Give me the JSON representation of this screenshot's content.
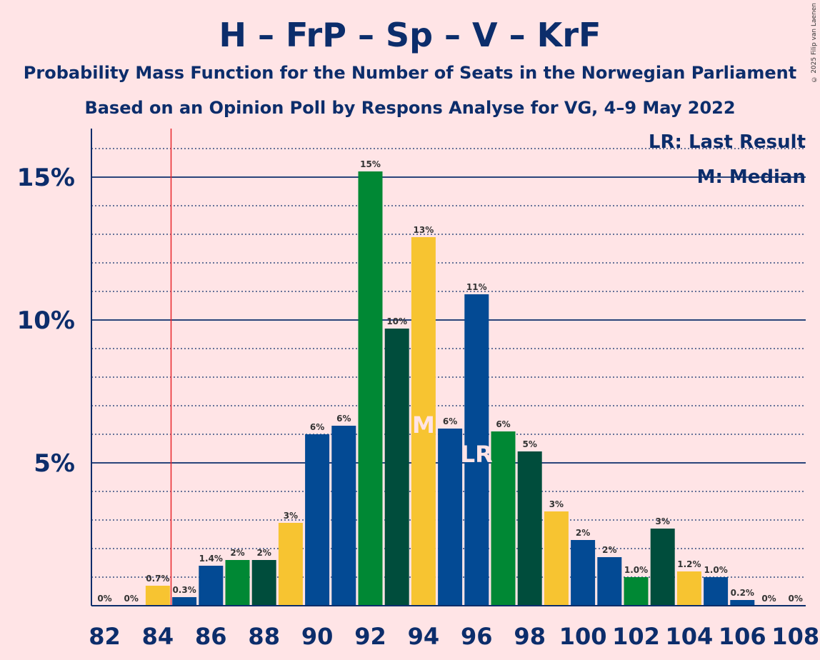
{
  "title": "H – FrP – Sp – V – KrF",
  "subtitle": "Probability Mass Function for the Number of Seats in the Norwegian Parliament",
  "subtitle2": "Based on an Opinion Poll by Respons Analyse for VG, 4–9 May 2022",
  "copyright": "© 2025 Filip van Laenen",
  "legend": {
    "last_result": "LR: Last Result",
    "median": "M: Median"
  },
  "colors": {
    "background": "#FFE4E6",
    "text": "#0C2D6B",
    "last_result_line": "#E8262B",
    "party_colors": [
      "#E8262B",
      "#F7C431",
      "#034A94",
      "#008834",
      "#004D3C"
    ]
  },
  "chart_data": {
    "type": "bar",
    "x": [
      82,
      83,
      84,
      85,
      86,
      87,
      88,
      89,
      90,
      91,
      92,
      93,
      94,
      95,
      96,
      97,
      98,
      99,
      100,
      101,
      102,
      103,
      104,
      105,
      106,
      107,
      108
    ],
    "values": [
      0,
      0,
      0.7,
      0.3,
      1.4,
      1.6,
      1.6,
      2.9,
      6.0,
      6.3,
      15.2,
      9.7,
      12.9,
      6.2,
      10.9,
      6.1,
      5.4,
      3.3,
      2.3,
      1.7,
      1.0,
      2.7,
      1.2,
      1.0,
      0.2,
      0,
      0
    ],
    "labels": [
      "0%",
      "0%",
      "0.7%",
      "0.3%",
      "1.4%",
      "2%",
      "2%",
      "3%",
      "6%",
      "6%",
      "15%",
      "10%",
      "13%",
      "6%",
      "11%",
      "6%",
      "5%",
      "3%",
      "2%",
      "2%",
      "1.0%",
      "3%",
      "1.2%",
      "1.0%",
      "0.2%",
      "0%",
      "0%"
    ],
    "bar_colors": [
      "#034A94",
      "#034A94",
      "#F7C431",
      "#034A94",
      "#034A94",
      "#008834",
      "#004D3C",
      "#F7C431",
      "#034A94",
      "#034A94",
      "#008834",
      "#004D3C",
      "#F7C431",
      "#034A94",
      "#034A94",
      "#008834",
      "#004D3C",
      "#F7C431",
      "#034A94",
      "#034A94",
      "#008834",
      "#004D3C",
      "#F7C431",
      "#034A94",
      "#034A94",
      "#034A94",
      "#034A94"
    ],
    "x_ticks": [
      "82",
      "84",
      "86",
      "88",
      "90",
      "92",
      "94",
      "96",
      "98",
      "100",
      "102",
      "104",
      "106",
      "108"
    ],
    "y_ticks": [
      {
        "value": 5,
        "label": "5%"
      },
      {
        "value": 10,
        "label": "10%"
      },
      {
        "value": 15,
        "label": "15%"
      }
    ],
    "ylim": [
      0,
      16.5
    ],
    "last_result": {
      "x": 84.5,
      "label": "LR",
      "bar_x": 96
    },
    "median": {
      "x": 94,
      "label": "M"
    }
  }
}
